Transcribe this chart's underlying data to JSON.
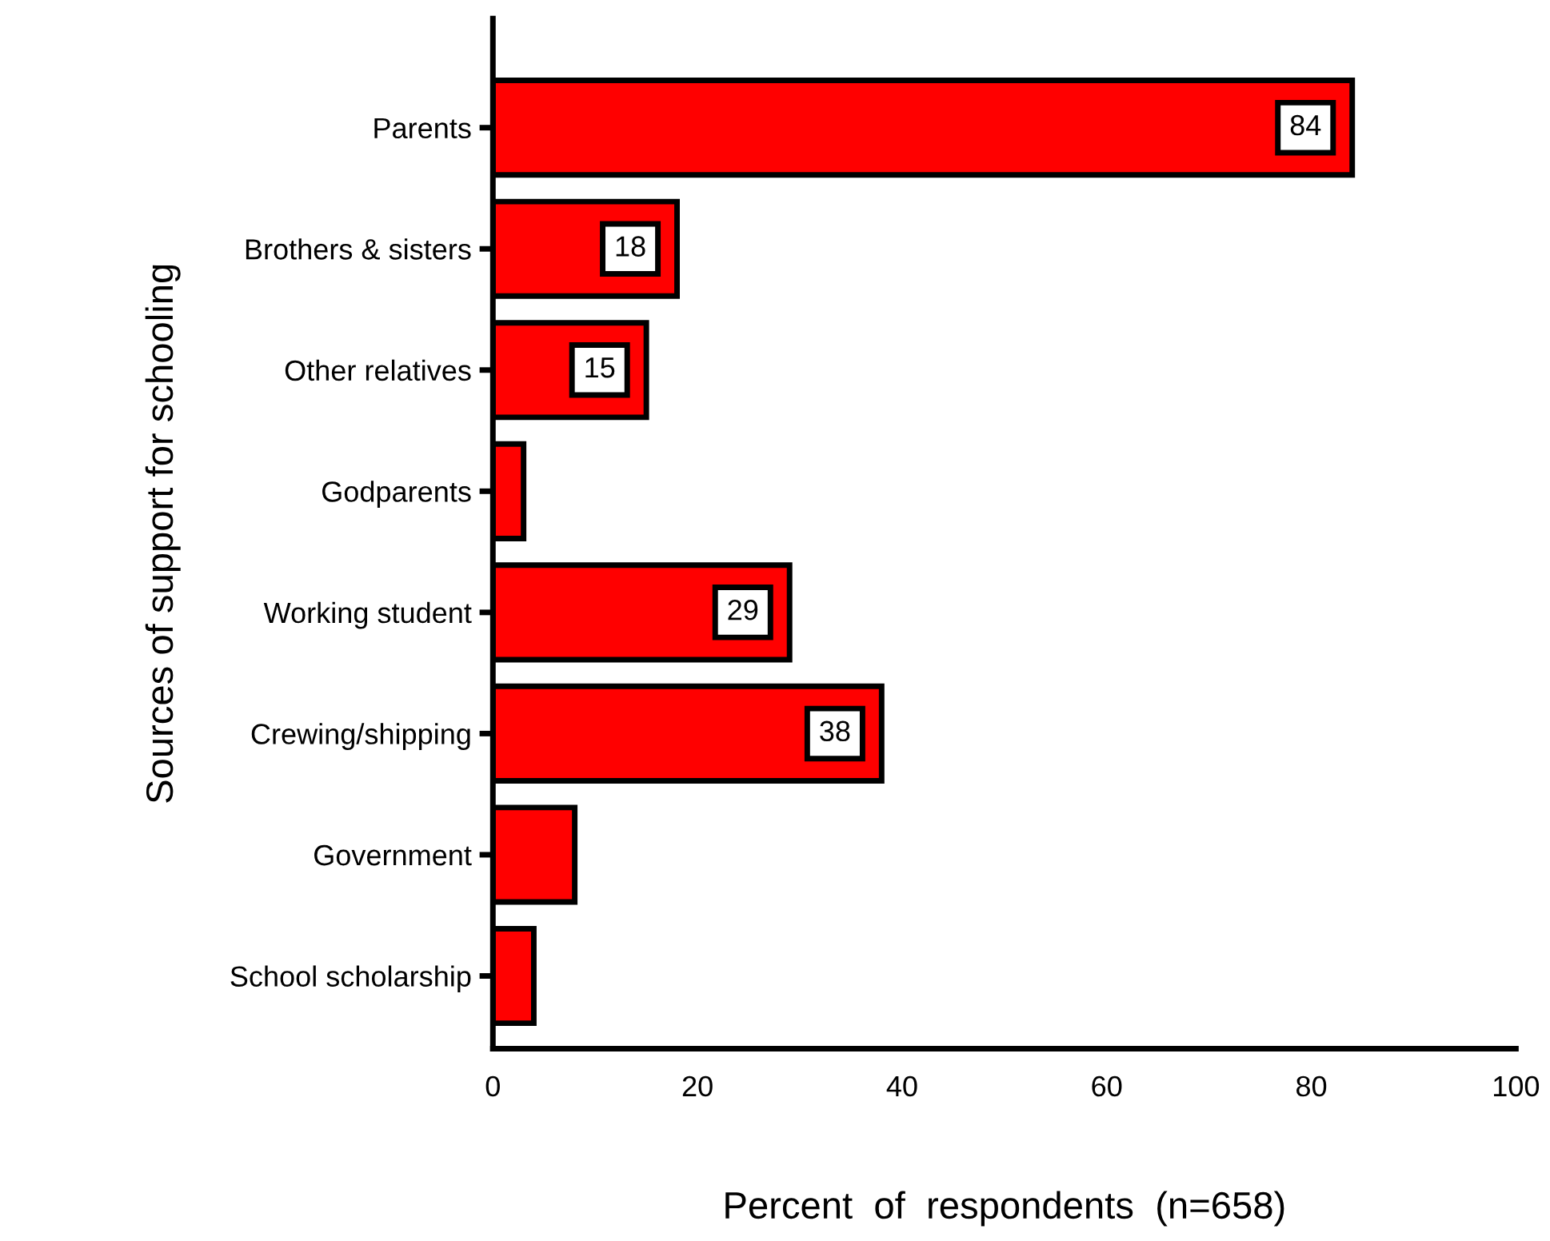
{
  "chart_data": {
    "type": "bar",
    "orientation": "horizontal",
    "xlabel": "Percent  of  respondents  (n=658)",
    "ylabel": "Sources of support for schooling",
    "categories": [
      "Parents",
      "Brothers & sisters",
      "Other relatives",
      "Godparents",
      "Working student",
      "Crewing/shipping",
      "Government",
      "School scholarship"
    ],
    "values": [
      84,
      18,
      15,
      3,
      29,
      38,
      8,
      4
    ],
    "value_labels": [
      "84",
      "18",
      "15",
      null,
      "29",
      "38",
      null,
      null
    ],
    "color": "#ff0000",
    "xlim": [
      0,
      100
    ],
    "xticks": [
      0,
      20,
      40,
      60,
      80,
      100
    ],
    "grid": false,
    "legend": false
  }
}
